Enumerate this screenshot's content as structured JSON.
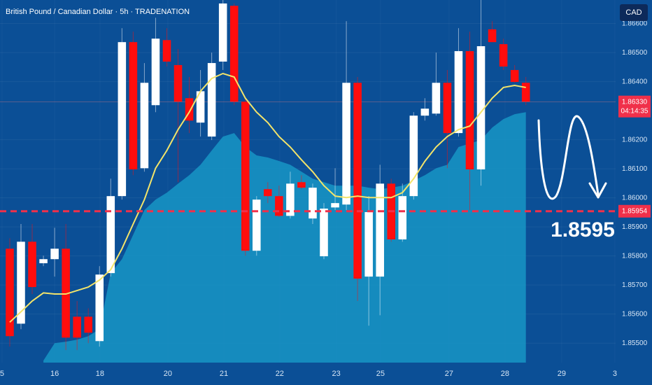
{
  "chart_data": {
    "type": "candlestick",
    "title": "British Pound / Canadian Dollar · 5h · TRADENATION",
    "currency_button": "CAD",
    "ohlc": [
      [
        1.85825,
        1.85861,
        1.85488,
        1.85524
      ],
      [
        1.85567,
        1.8591,
        1.85548,
        1.85849
      ],
      [
        1.85849,
        1.8591,
        1.85669,
        1.85693
      ],
      [
        1.85775,
        1.85801,
        1.85765,
        1.85789
      ],
      [
        1.85789,
        1.85897,
        1.85729,
        1.85825
      ],
      [
        1.85825,
        1.8591,
        1.85476,
        1.85519
      ],
      [
        1.85591,
        1.85645,
        1.85476,
        1.85519
      ],
      [
        1.85591,
        1.8562,
        1.855,
        1.85536
      ],
      [
        1.85507,
        1.85765,
        1.85488,
        1.85736
      ],
      [
        1.85741,
        1.86066,
        1.85729,
        1.86006
      ],
      [
        1.86006,
        1.86584,
        1.85994,
        1.86536
      ],
      [
        1.86536,
        1.86572,
        1.86078,
        1.86098
      ],
      [
        1.86102,
        1.86464,
        1.8609,
        1.86396
      ],
      [
        1.86319,
        1.8662,
        1.86295,
        1.86548
      ],
      [
        1.86543,
        1.86584,
        1.86452,
        1.86469
      ],
      [
        1.86457,
        1.86512,
        1.86054,
        1.86331
      ],
      [
        1.86343,
        1.86416,
        1.86223,
        1.86266
      ],
      [
        1.86259,
        1.8644,
        1.86211,
        1.86367
      ],
      [
        1.86211,
        1.865,
        1.86199,
        1.86464
      ],
      [
        1.86469,
        1.86681,
        1.8644,
        1.86669
      ],
      [
        1.86661,
        1.86669,
        1.86319,
        1.86331
      ],
      [
        1.86331,
        1.86343,
        1.85801,
        1.85818
      ],
      [
        1.85818,
        1.86006,
        1.85801,
        1.85994
      ],
      [
        1.8603,
        1.86054,
        1.85982,
        1.86006
      ],
      [
        1.86006,
        1.86042,
        1.85934,
        1.85938
      ],
      [
        1.85938,
        1.8609,
        1.85929,
        1.86049
      ],
      [
        1.86054,
        1.86078,
        1.8603,
        1.86035
      ],
      [
        1.85929,
        1.86049,
        1.8591,
        1.86035
      ],
      [
        1.85799,
        1.85982,
        1.85789,
        1.85963
      ],
      [
        1.85967,
        1.86102,
        1.85958,
        1.85982
      ],
      [
        1.85977,
        1.86608,
        1.85958,
        1.86396
      ],
      [
        1.86396,
        1.86416,
        1.85645,
        1.85722
      ],
      [
        1.85729,
        1.86006,
        1.8556,
        1.85951
      ],
      [
        1.85729,
        1.86114,
        1.85596,
        1.86049
      ],
      [
        1.86049,
        1.86066,
        1.85849,
        1.85857
      ],
      [
        1.85857,
        1.86049,
        1.85849,
        1.86006
      ],
      [
        1.86006,
        1.86295,
        1.85994,
        1.86283
      ],
      [
        1.86283,
        1.86343,
        1.86266,
        1.86307
      ],
      [
        1.8629,
        1.865,
        1.86283,
        1.86396
      ],
      [
        1.86396,
        1.8644,
        1.86102,
        1.86223
      ],
      [
        1.86223,
        1.86584,
        1.86211,
        1.86505
      ],
      [
        1.86505,
        1.86572,
        1.85958,
        1.86098
      ],
      [
        1.86098,
        1.86681,
        1.86042,
        1.86522
      ],
      [
        1.8658,
        1.86608,
        1.86536,
        1.86536
      ],
      [
        1.86529,
        1.86548,
        1.8644,
        1.86452
      ],
      [
        1.8644,
        1.86457,
        1.86396,
        1.86399
      ],
      [
        1.86396,
        1.86416,
        1.86319,
        1.86331
      ]
    ],
    "ma": [
      1.85572,
      1.85608,
      1.85645,
      1.85673,
      1.85669,
      1.85669,
      1.85681,
      1.85693,
      1.85717,
      1.85753,
      1.85825,
      1.8591,
      1.85994,
      1.86102,
      1.86163,
      1.86235,
      1.86295,
      1.86367,
      1.86411,
      1.86428,
      1.86416,
      1.86343,
      1.86295,
      1.86259,
      1.86211,
      1.86175,
      1.86131,
      1.8609,
      1.86042,
      1.86006,
      1.86001,
      1.86006,
      1.86001,
      1.86001,
      1.86001,
      1.86018,
      1.86066,
      1.86126,
      1.86175,
      1.86211,
      1.86235,
      1.86247,
      1.86295,
      1.86343,
      1.8638,
      1.86387,
      1.8638
    ],
    "area": [
      null,
      null,
      null,
      1.8544,
      1.855,
      1.85505,
      1.85512,
      1.85524,
      1.85548,
      1.85741,
      1.85789,
      1.85873,
      1.85958,
      1.85994,
      1.86018,
      1.86049,
      1.86078,
      1.86114,
      1.86163,
      1.86211,
      1.86223,
      1.86175,
      1.86146,
      1.86139,
      1.86127,
      1.86114,
      1.8609,
      1.86066,
      1.86054,
      1.86042,
      1.86042,
      1.86042,
      1.86035,
      1.8603,
      1.86035,
      1.86042,
      1.86059,
      1.86078,
      1.86102,
      1.86114,
      1.86175,
      1.86187,
      1.86199,
      1.86242,
      1.86271,
      1.86288,
      1.86295
    ],
    "up_color": "#ffffff",
    "down_color": "#ff0d0d",
    "ma_color": "#f3e46a",
    "area_color": "#1795c6",
    "ylim": [
      1.85433,
      1.86681
    ],
    "yticks": [
      {
        "value": 1.866,
        "label": "1.86600"
      },
      {
        "value": 1.865,
        "label": "1.86500"
      },
      {
        "value": 1.864,
        "label": "1.86400"
      },
      {
        "value": 1.862,
        "label": "1.86200"
      },
      {
        "value": 1.861,
        "label": "1.86100"
      },
      {
        "value": 1.86,
        "label": "1.86000"
      },
      {
        "value": 1.859,
        "label": "1.85900"
      },
      {
        "value": 1.858,
        "label": "1.85800"
      },
      {
        "value": 1.857,
        "label": "1.85700"
      },
      {
        "value": 1.856,
        "label": "1.85600"
      },
      {
        "value": 1.855,
        "label": "1.85500"
      }
    ],
    "xlim": [
      -0.87,
      54
    ],
    "xticks": [
      {
        "value": -0.69,
        "label": "5"
      },
      {
        "value": 4,
        "label": "16"
      },
      {
        "value": 8.04,
        "label": "18"
      },
      {
        "value": 14.09,
        "label": "20"
      },
      {
        "value": 19.08,
        "label": "21"
      },
      {
        "value": 24.06,
        "label": "22"
      },
      {
        "value": 29.1,
        "label": "23"
      },
      {
        "value": 33.04,
        "label": "25"
      },
      {
        "value": 39.15,
        "label": "27"
      },
      {
        "value": 44.14,
        "label": "28"
      },
      {
        "value": 49.19,
        "label": "29"
      },
      {
        "value": 53.93,
        "label": "3"
      }
    ],
    "last_price": {
      "value": 1.8633,
      "label": "1.86330"
    },
    "countdown": "04:14:35",
    "target_line": {
      "value": 1.85954,
      "label": "1.85954"
    },
    "target_annotation": "1.8595"
  }
}
